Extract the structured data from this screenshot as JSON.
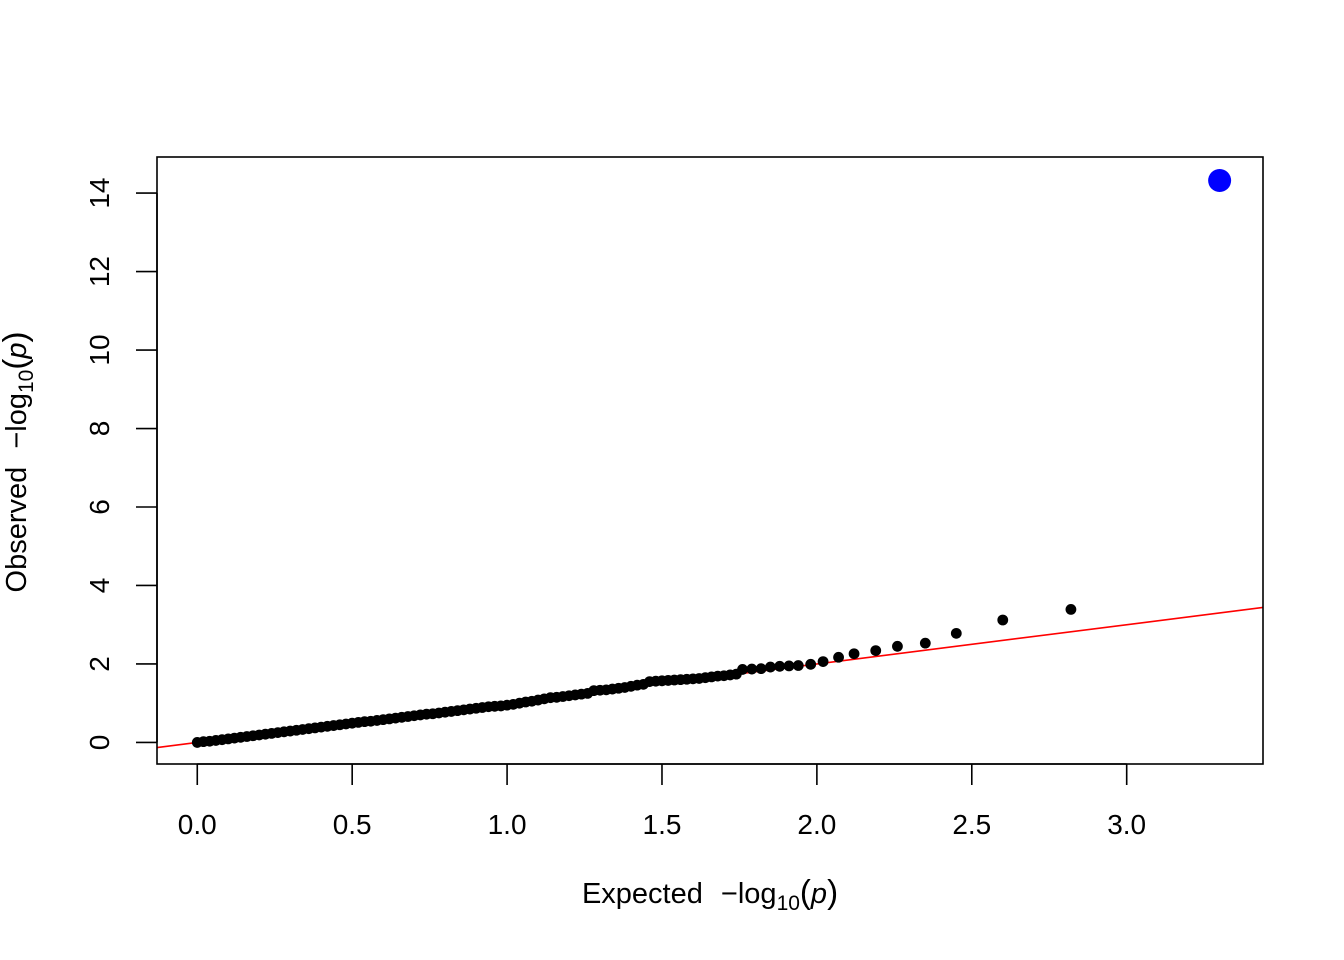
{
  "chart_data": {
    "type": "scatter",
    "title": "",
    "xlabel": {
      "prefix": "Expected",
      "minus": "−",
      "log": "log",
      "sub": "10",
      "lparen": "(",
      "var": "p",
      "rparen": ")"
    },
    "ylabel": {
      "prefix": "Observed",
      "minus": "−",
      "log": "log",
      "sub": "10",
      "lparen": "(",
      "var": "p",
      "rparen": ")"
    },
    "xlim": [
      -0.13,
      3.44
    ],
    "ylim": [
      -0.55,
      14.92
    ],
    "x_ticks": [
      0.0,
      0.5,
      1.0,
      1.5,
      2.0,
      2.5,
      3.0
    ],
    "x_tick_labels": [
      "0.0",
      "0.5",
      "1.0",
      "1.5",
      "2.0",
      "2.5",
      "3.0"
    ],
    "y_ticks": [
      0,
      2,
      4,
      6,
      8,
      10,
      12,
      14
    ],
    "y_tick_labels": [
      "0",
      "2",
      "4",
      "6",
      "8",
      "10",
      "12",
      "14"
    ],
    "grid": false,
    "reference_line": {
      "slope": 1,
      "intercept": 0,
      "color": "#ff0000"
    },
    "series": [
      {
        "color": "#000000",
        "points": [
          {
            "x": 0.0,
            "y": 0.0
          },
          {
            "x": 0.02,
            "y": 0.02
          },
          {
            "x": 0.04,
            "y": 0.03
          },
          {
            "x": 0.06,
            "y": 0.05
          },
          {
            "x": 0.08,
            "y": 0.07
          },
          {
            "x": 0.1,
            "y": 0.09
          },
          {
            "x": 0.12,
            "y": 0.11
          },
          {
            "x": 0.14,
            "y": 0.13
          },
          {
            "x": 0.16,
            "y": 0.15
          },
          {
            "x": 0.18,
            "y": 0.17
          },
          {
            "x": 0.2,
            "y": 0.19
          },
          {
            "x": 0.22,
            "y": 0.21
          },
          {
            "x": 0.24,
            "y": 0.23
          },
          {
            "x": 0.26,
            "y": 0.25
          },
          {
            "x": 0.28,
            "y": 0.27
          },
          {
            "x": 0.3,
            "y": 0.29
          },
          {
            "x": 0.32,
            "y": 0.31
          },
          {
            "x": 0.34,
            "y": 0.33
          },
          {
            "x": 0.36,
            "y": 0.35
          },
          {
            "x": 0.38,
            "y": 0.37
          },
          {
            "x": 0.4,
            "y": 0.39
          },
          {
            "x": 0.42,
            "y": 0.41
          },
          {
            "x": 0.44,
            "y": 0.43
          },
          {
            "x": 0.46,
            "y": 0.45
          },
          {
            "x": 0.48,
            "y": 0.47
          },
          {
            "x": 0.5,
            "y": 0.49
          },
          {
            "x": 0.52,
            "y": 0.51
          },
          {
            "x": 0.54,
            "y": 0.53
          },
          {
            "x": 0.56,
            "y": 0.54
          },
          {
            "x": 0.58,
            "y": 0.56
          },
          {
            "x": 0.6,
            "y": 0.58
          },
          {
            "x": 0.62,
            "y": 0.6
          },
          {
            "x": 0.64,
            "y": 0.62
          },
          {
            "x": 0.66,
            "y": 0.64
          },
          {
            "x": 0.68,
            "y": 0.66
          },
          {
            "x": 0.7,
            "y": 0.68
          },
          {
            "x": 0.72,
            "y": 0.7
          },
          {
            "x": 0.74,
            "y": 0.72
          },
          {
            "x": 0.76,
            "y": 0.73
          },
          {
            "x": 0.78,
            "y": 0.75
          },
          {
            "x": 0.8,
            "y": 0.77
          },
          {
            "x": 0.82,
            "y": 0.79
          },
          {
            "x": 0.84,
            "y": 0.81
          },
          {
            "x": 0.86,
            "y": 0.83
          },
          {
            "x": 0.88,
            "y": 0.85
          },
          {
            "x": 0.9,
            "y": 0.87
          },
          {
            "x": 0.92,
            "y": 0.89
          },
          {
            "x": 0.94,
            "y": 0.91
          },
          {
            "x": 0.96,
            "y": 0.92
          },
          {
            "x": 0.98,
            "y": 0.93
          },
          {
            "x": 1.0,
            "y": 0.95
          },
          {
            "x": 1.02,
            "y": 0.97
          },
          {
            "x": 1.04,
            "y": 1.0
          },
          {
            "x": 1.06,
            "y": 1.03
          },
          {
            "x": 1.08,
            "y": 1.05
          },
          {
            "x": 1.1,
            "y": 1.08
          },
          {
            "x": 1.12,
            "y": 1.11
          },
          {
            "x": 1.14,
            "y": 1.14
          },
          {
            "x": 1.16,
            "y": 1.15
          },
          {
            "x": 1.18,
            "y": 1.17
          },
          {
            "x": 1.2,
            "y": 1.19
          },
          {
            "x": 1.22,
            "y": 1.21
          },
          {
            "x": 1.24,
            "y": 1.23
          },
          {
            "x": 1.26,
            "y": 1.25
          },
          {
            "x": 1.28,
            "y": 1.32
          },
          {
            "x": 1.3,
            "y": 1.33
          },
          {
            "x": 1.32,
            "y": 1.34
          },
          {
            "x": 1.34,
            "y": 1.36
          },
          {
            "x": 1.36,
            "y": 1.38
          },
          {
            "x": 1.38,
            "y": 1.4
          },
          {
            "x": 1.4,
            "y": 1.43
          },
          {
            "x": 1.42,
            "y": 1.46
          },
          {
            "x": 1.44,
            "y": 1.48
          },
          {
            "x": 1.46,
            "y": 1.55
          },
          {
            "x": 1.48,
            "y": 1.56
          },
          {
            "x": 1.5,
            "y": 1.57
          },
          {
            "x": 1.52,
            "y": 1.58
          },
          {
            "x": 1.54,
            "y": 1.59
          },
          {
            "x": 1.56,
            "y": 1.6
          },
          {
            "x": 1.58,
            "y": 1.61
          },
          {
            "x": 1.6,
            "y": 1.62
          },
          {
            "x": 1.62,
            "y": 1.63
          },
          {
            "x": 1.64,
            "y": 1.65
          },
          {
            "x": 1.66,
            "y": 1.67
          },
          {
            "x": 1.68,
            "y": 1.69
          },
          {
            "x": 1.7,
            "y": 1.7
          },
          {
            "x": 1.72,
            "y": 1.72
          },
          {
            "x": 1.74,
            "y": 1.74
          },
          {
            "x": 1.76,
            "y": 1.86
          },
          {
            "x": 1.79,
            "y": 1.87
          },
          {
            "x": 1.82,
            "y": 1.88
          },
          {
            "x": 1.85,
            "y": 1.92
          },
          {
            "x": 1.88,
            "y": 1.94
          },
          {
            "x": 1.91,
            "y": 1.95
          },
          {
            "x": 1.94,
            "y": 1.96
          },
          {
            "x": 1.98,
            "y": 1.99
          },
          {
            "x": 2.02,
            "y": 2.06
          },
          {
            "x": 2.07,
            "y": 2.17
          },
          {
            "x": 2.12,
            "y": 2.26
          },
          {
            "x": 2.19,
            "y": 2.34
          },
          {
            "x": 2.26,
            "y": 2.45
          },
          {
            "x": 2.35,
            "y": 2.53
          },
          {
            "x": 2.45,
            "y": 2.78
          },
          {
            "x": 2.6,
            "y": 3.12
          },
          {
            "x": 2.82,
            "y": 3.39
          }
        ]
      },
      {
        "color": "#0000ff",
        "points": [
          {
            "x": 3.3,
            "y": 14.32
          }
        ]
      }
    ]
  }
}
